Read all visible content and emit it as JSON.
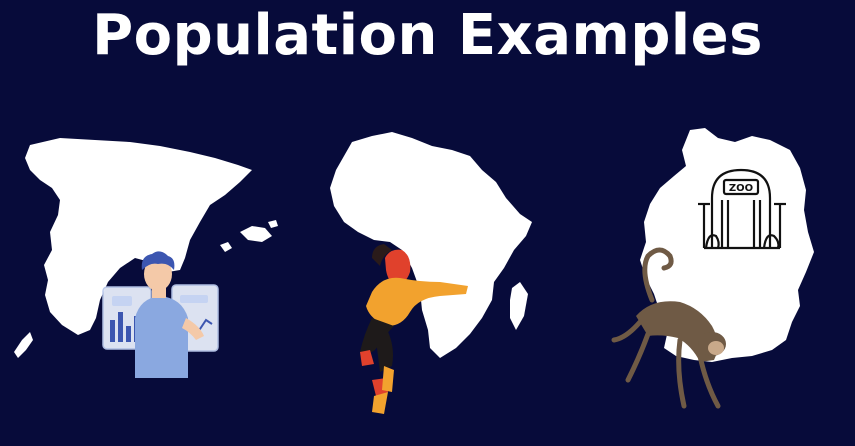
{
  "title": "Population Examples",
  "colors": {
    "background": "#070b3a",
    "map_fill": "#ffffff",
    "person_shirt": "#f2a22e",
    "person_hair": "#e0412c",
    "analyst_shirt": "#8aa8e0",
    "monkey_fur": "#6f5a45"
  },
  "panels": [
    {
      "map": "spain-map",
      "figure": "data-analyst-illustration"
    },
    {
      "map": "africa-map",
      "figure": "dancing-person-illustration"
    },
    {
      "map": "germany-map",
      "figure": "zoo-gate-icon",
      "label": "ZOO"
    },
    {
      "map": "germany-map",
      "figure": "monkey-illustration"
    }
  ]
}
